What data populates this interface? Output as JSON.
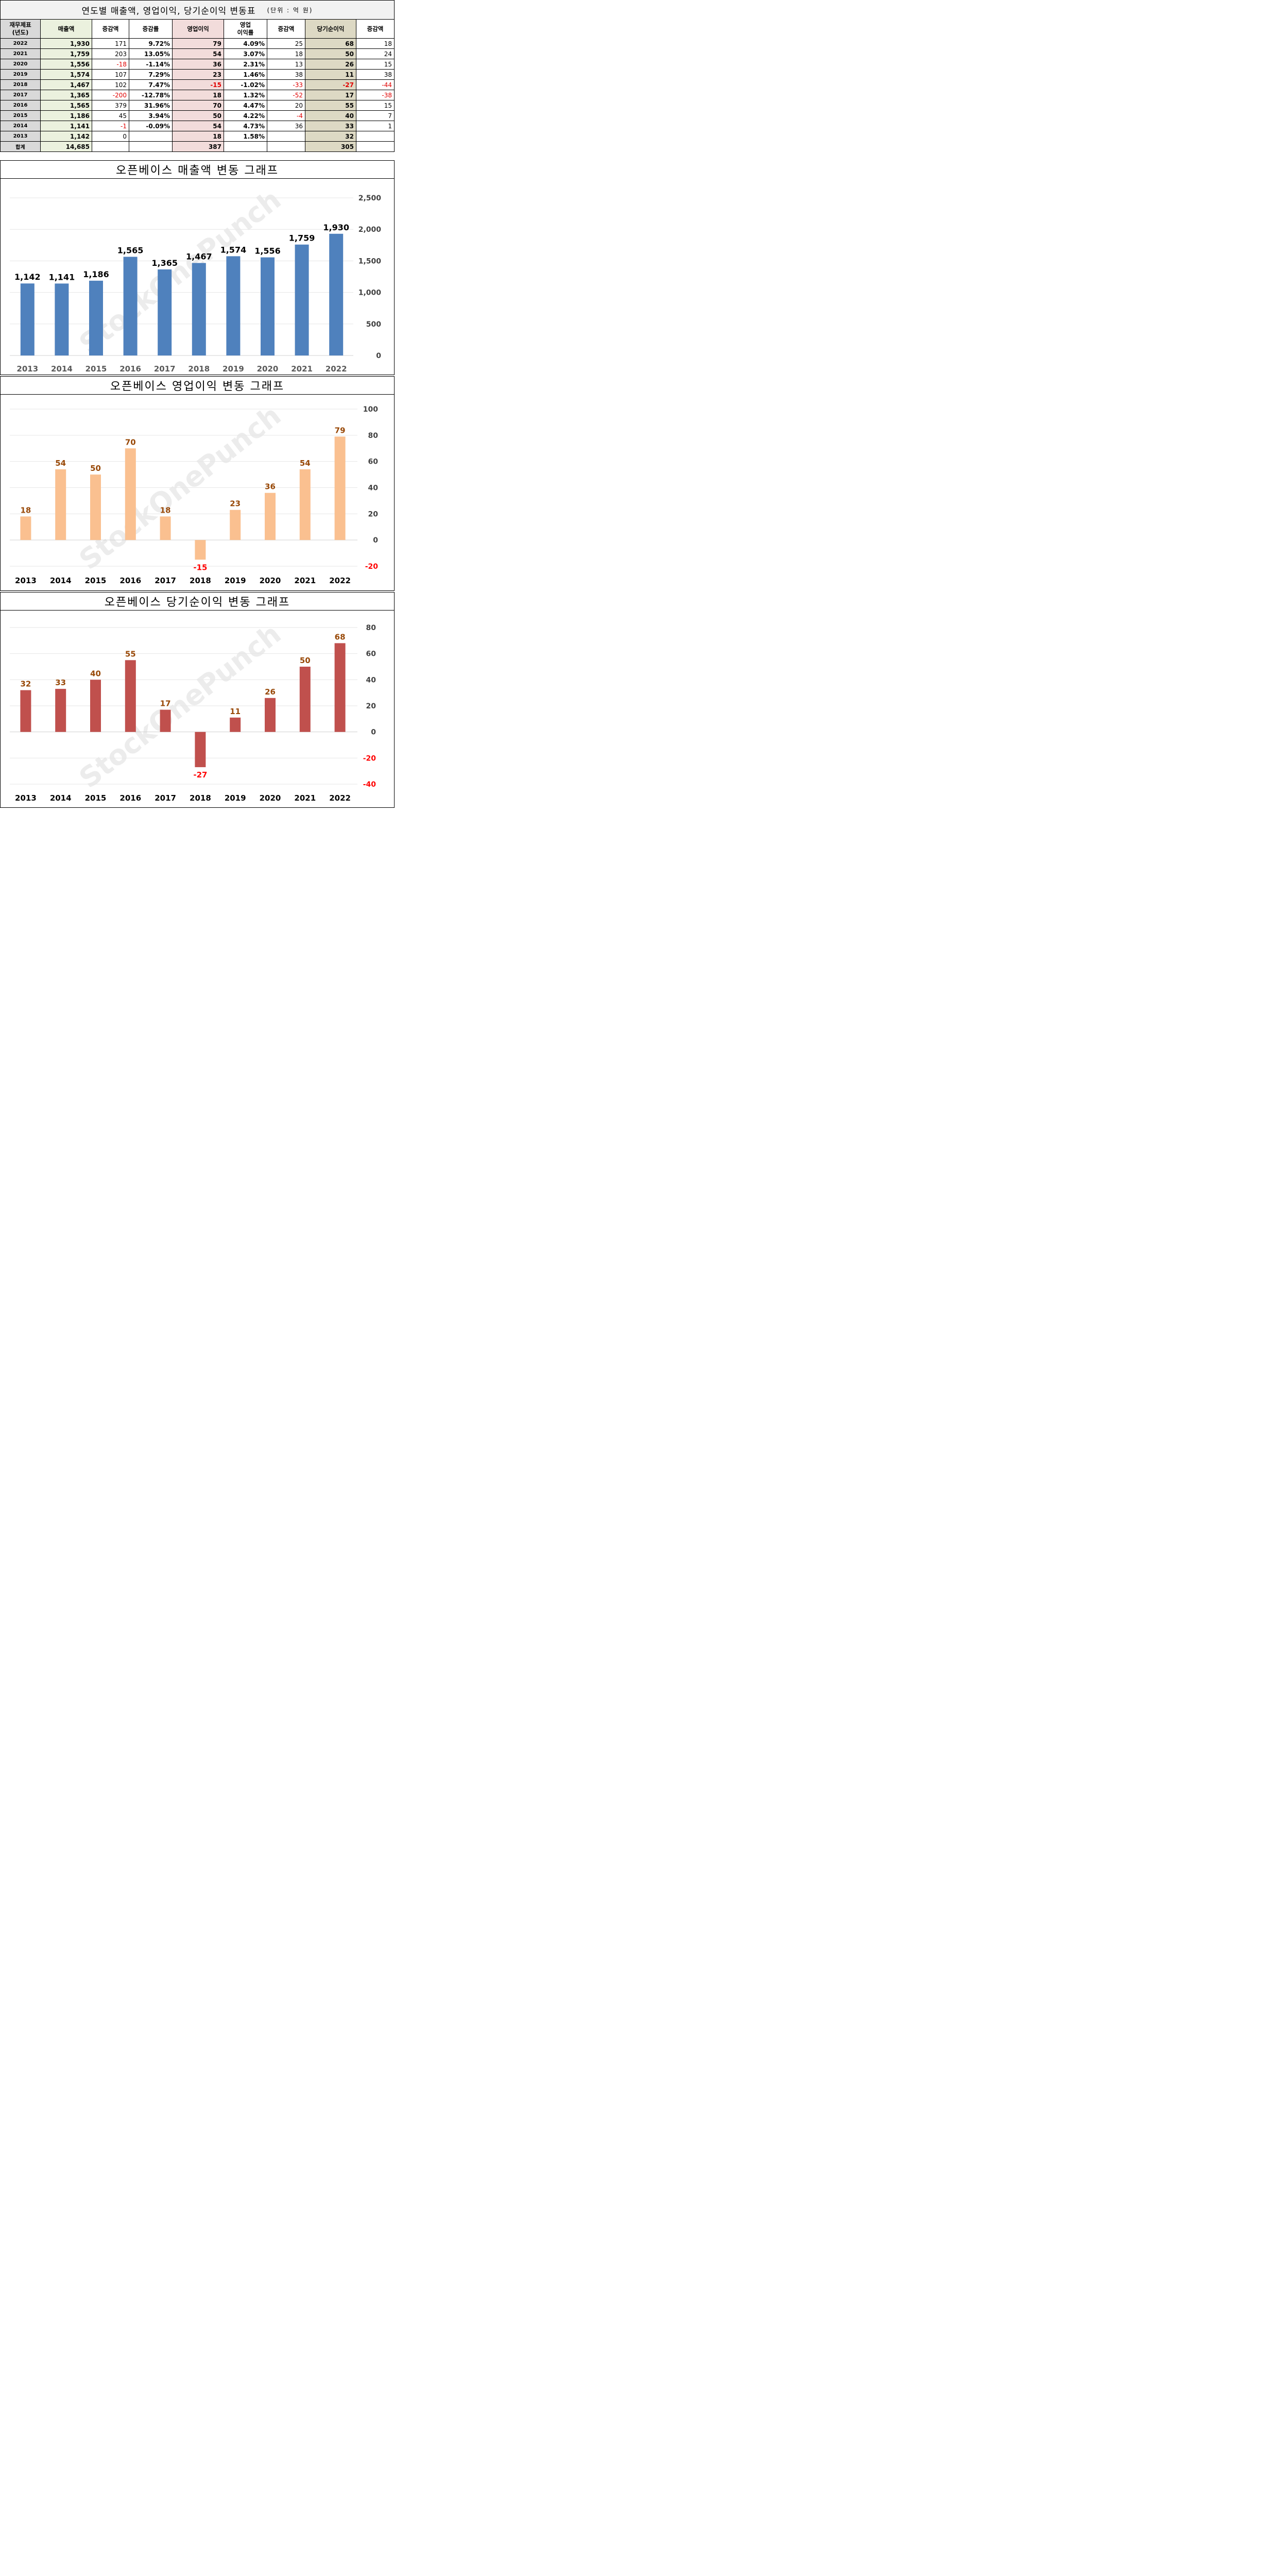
{
  "table": {
    "title": "연도별 매출액, 영업이익, 당기순이익 변동표",
    "unit": "(단위 : 억 원)",
    "headers": {
      "year": "재무제표\n(년도)",
      "sales": "매출액",
      "sales_change": "증감액",
      "sales_rate": "증감률",
      "op": "영업이익",
      "op_margin": "영업\n이익률",
      "op_change": "증감액",
      "net": "당기순이익",
      "net_change": "증감액"
    },
    "rows": [
      {
        "year": "2022",
        "sales": "1,930",
        "sales_change": "171",
        "sales_rate": "9.72%",
        "op": "79",
        "op_margin": "4.09%",
        "op_change": "25",
        "net": "68",
        "net_change": "18"
      },
      {
        "year": "2021",
        "sales": "1,759",
        "sales_change": "203",
        "sales_rate": "13.05%",
        "op": "54",
        "op_margin": "3.07%",
        "op_change": "18",
        "net": "50",
        "net_change": "24"
      },
      {
        "year": "2020",
        "sales": "1,556",
        "sales_change": "-18",
        "sales_rate": "-1.14%",
        "op": "36",
        "op_margin": "2.31%",
        "op_change": "13",
        "net": "26",
        "net_change": "15"
      },
      {
        "year": "2019",
        "sales": "1,574",
        "sales_change": "107",
        "sales_rate": "7.29%",
        "op": "23",
        "op_margin": "1.46%",
        "op_change": "38",
        "net": "11",
        "net_change": "38"
      },
      {
        "year": "2018",
        "sales": "1,467",
        "sales_change": "102",
        "sales_rate": "7.47%",
        "op": "-15",
        "op_margin": "-1.02%",
        "op_change": "-33",
        "net": "-27",
        "net_change": "-44"
      },
      {
        "year": "2017",
        "sales": "1,365",
        "sales_change": "-200",
        "sales_rate": "-12.78%",
        "op": "18",
        "op_margin": "1.32%",
        "op_change": "-52",
        "net": "17",
        "net_change": "-38"
      },
      {
        "year": "2016",
        "sales": "1,565",
        "sales_change": "379",
        "sales_rate": "31.96%",
        "op": "70",
        "op_margin": "4.47%",
        "op_change": "20",
        "net": "55",
        "net_change": "15"
      },
      {
        "year": "2015",
        "sales": "1,186",
        "sales_change": "45",
        "sales_rate": "3.94%",
        "op": "50",
        "op_margin": "4.22%",
        "op_change": "-4",
        "net": "40",
        "net_change": "7"
      },
      {
        "year": "2014",
        "sales": "1,141",
        "sales_change": "-1",
        "sales_rate": "-0.09%",
        "op": "54",
        "op_margin": "4.73%",
        "op_change": "36",
        "net": "33",
        "net_change": "1"
      },
      {
        "year": "2013",
        "sales": "1,142",
        "sales_change": "0",
        "sales_rate": "",
        "op": "18",
        "op_margin": "1.58%",
        "op_change": "",
        "net": "32",
        "net_change": ""
      }
    ],
    "total": {
      "year": "합계",
      "sales": "14,685",
      "sales_change": "",
      "sales_rate": "",
      "op": "387",
      "op_margin": "",
      "op_change": "",
      "net": "305",
      "net_change": ""
    }
  },
  "watermark": "StockOnePunch",
  "chart_data": [
    {
      "type": "bar",
      "title": "오픈베이스 매출액 변동 그래프",
      "categories": [
        "2013",
        "2014",
        "2015",
        "2016",
        "2017",
        "2018",
        "2019",
        "2020",
        "2021",
        "2022"
      ],
      "values": [
        1142,
        1141,
        1186,
        1565,
        1365,
        1467,
        1574,
        1556,
        1759,
        1930
      ],
      "value_labels": [
        "1,142",
        "1,141",
        "1,186",
        "1,565",
        "1,365",
        "1,467",
        "1,574",
        "1,556",
        "1,759",
        "1,930"
      ],
      "yticks": [
        0,
        500,
        1000,
        1500,
        2000,
        2500
      ],
      "ytick_labels": [
        "0",
        "500",
        "1,000",
        "1,500",
        "2,000",
        "2,500"
      ],
      "ylim": [
        0,
        2500
      ],
      "grid": true,
      "y_axis_position": "right",
      "colors": {
        "bar": "#4f81bd",
        "label": "#000000",
        "label_negative": "#000000",
        "tick_negative": "#404040"
      }
    },
    {
      "type": "bar",
      "title": "오픈베이스 영업이익 변동 그래프",
      "categories": [
        "2013",
        "2014",
        "2015",
        "2016",
        "2017",
        "2018",
        "2019",
        "2020",
        "2021",
        "2022"
      ],
      "values": [
        18,
        54,
        50,
        70,
        18,
        -15,
        23,
        36,
        54,
        79
      ],
      "value_labels": [
        "18",
        "54",
        "50",
        "70",
        "18",
        "-15",
        "23",
        "36",
        "54",
        "79"
      ],
      "yticks": [
        -20,
        0,
        20,
        40,
        60,
        80,
        100
      ],
      "ytick_labels": [
        "-20",
        "0",
        "20",
        "40",
        "60",
        "80",
        "100"
      ],
      "ylim": [
        -20,
        100
      ],
      "grid": true,
      "y_axis_position": "right",
      "colors": {
        "bar": "#fac090",
        "label": "#984807",
        "label_negative": "#ff0000",
        "tick_negative": "#ff0000"
      }
    },
    {
      "type": "bar",
      "title": "오픈베이스 당기순이익 변동 그래프",
      "categories": [
        "2013",
        "2014",
        "2015",
        "2016",
        "2017",
        "2018",
        "2019",
        "2020",
        "2021",
        "2022"
      ],
      "values": [
        32,
        33,
        40,
        55,
        17,
        -27,
        11,
        26,
        50,
        68
      ],
      "value_labels": [
        "32",
        "33",
        "40",
        "55",
        "17",
        "-27",
        "11",
        "26",
        "50",
        "68"
      ],
      "yticks": [
        -40,
        -20,
        0,
        20,
        40,
        60,
        80
      ],
      "ytick_labels": [
        "-40",
        "-20",
        "0",
        "20",
        "40",
        "60",
        "80"
      ],
      "ylim": [
        -40,
        80
      ],
      "grid": true,
      "y_axis_position": "right",
      "colors": {
        "bar": "#c0504d",
        "label": "#984807",
        "label_negative": "#ff0000",
        "tick_negative": "#ff0000"
      }
    }
  ]
}
